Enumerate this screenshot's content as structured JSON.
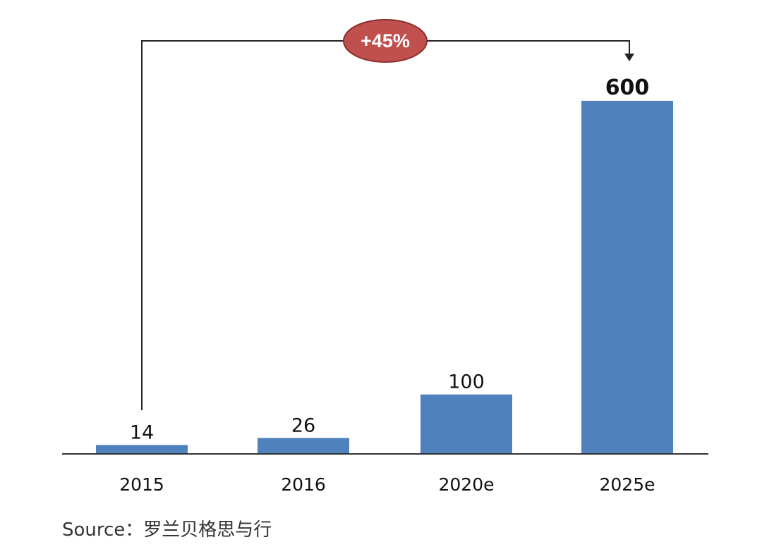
{
  "chart_data": {
    "type": "bar",
    "categories": [
      "2015",
      "2016",
      "2020e",
      "2025e"
    ],
    "values": [
      14,
      26,
      100,
      600
    ],
    "value_labels": [
      "14",
      "26",
      "100",
      "600"
    ],
    "title": "",
    "xlabel": "",
    "ylabel": "",
    "ylim": [
      0,
      600
    ],
    "grid": false,
    "legend": "none",
    "bar_color": "#4f81bd",
    "highlight_value_index": 3,
    "annotation": {
      "text": "+45%",
      "from_category": "2015",
      "to_category": "2025e",
      "fill_color": "#c0504d",
      "text_color": "#ffffff"
    }
  },
  "footer": {
    "source": "Source：罗兰贝格思与行"
  }
}
